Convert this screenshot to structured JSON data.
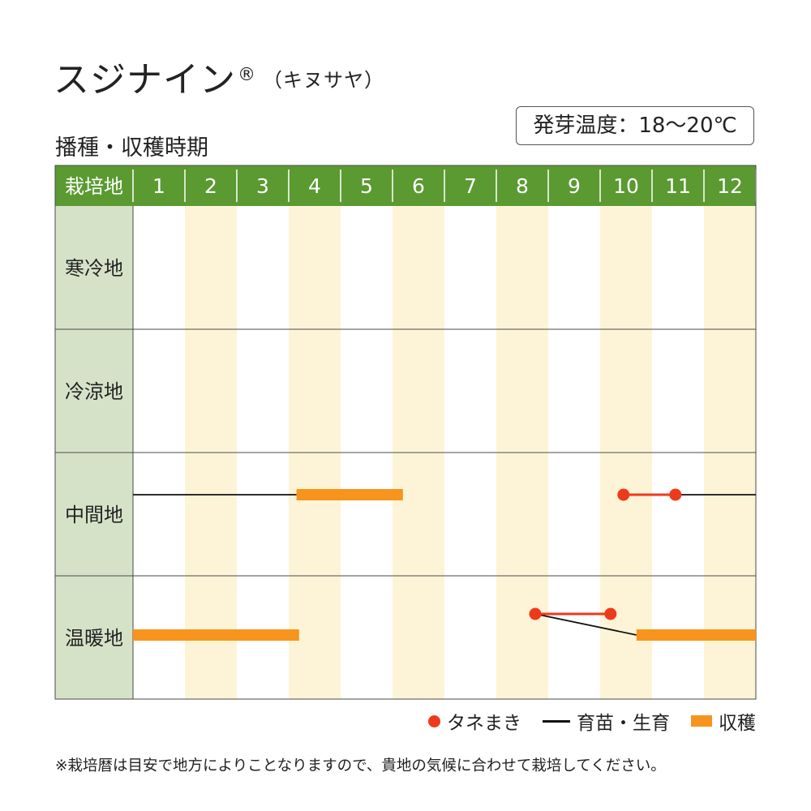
{
  "title": {
    "main": "スジナイン",
    "registered": "®",
    "sub": "（キヌサヤ）"
  },
  "subtitle": "播種・収穫時期",
  "germination_temp": "発芽温度：18〜20℃",
  "chart_data": {
    "type": "table",
    "header_label": "栽培地",
    "months": [
      "1",
      "2",
      "3",
      "4",
      "5",
      "6",
      "7",
      "8",
      "9",
      "10",
      "11",
      "12"
    ],
    "regions": [
      {
        "name": "寒冷地",
        "sowing": [],
        "growing": [],
        "harvest": []
      },
      {
        "name": "冷涼地",
        "sowing": [],
        "growing": [],
        "harvest": []
      },
      {
        "name": "中間地",
        "sowing": [
          {
            "start": 10.45,
            "end": 11.45
          }
        ],
        "growing": [
          {
            "start": 1.0,
            "end": 4.15,
            "to_start": 1.0,
            "to_end": 4.15
          },
          {
            "start": 11.45,
            "end": 13.0,
            "to_start": 11.45,
            "to_end": 13.0
          }
        ],
        "harvest": [
          {
            "start": 4.15,
            "end": 6.2
          }
        ]
      },
      {
        "name": "温暖地",
        "sowing": [
          {
            "start": 8.75,
            "end": 10.2
          }
        ],
        "growing": [
          {
            "start": 8.75,
            "end": 10.7,
            "to_start": 8.75,
            "to_end": 10.7
          }
        ],
        "harvest": [
          {
            "start": 1.0,
            "end": 4.2
          },
          {
            "start": 10.7,
            "end": 13.0
          }
        ]
      }
    ]
  },
  "legend": {
    "sowing": "タネまき",
    "growing": "育苗・生育",
    "harvest": "収穫"
  },
  "colors": {
    "header_green": "#5a9a31",
    "label_bg": "#d6e2c8",
    "stripe": "#fdf4d8",
    "sowing": "#ee3a1c",
    "growing": "#111111",
    "harvest": "#f7941d",
    "grid": "#4a4a4a"
  },
  "note": "※栽培暦は目安で地方によりことなりますので、貴地の気候に合わせて栽培してください。"
}
